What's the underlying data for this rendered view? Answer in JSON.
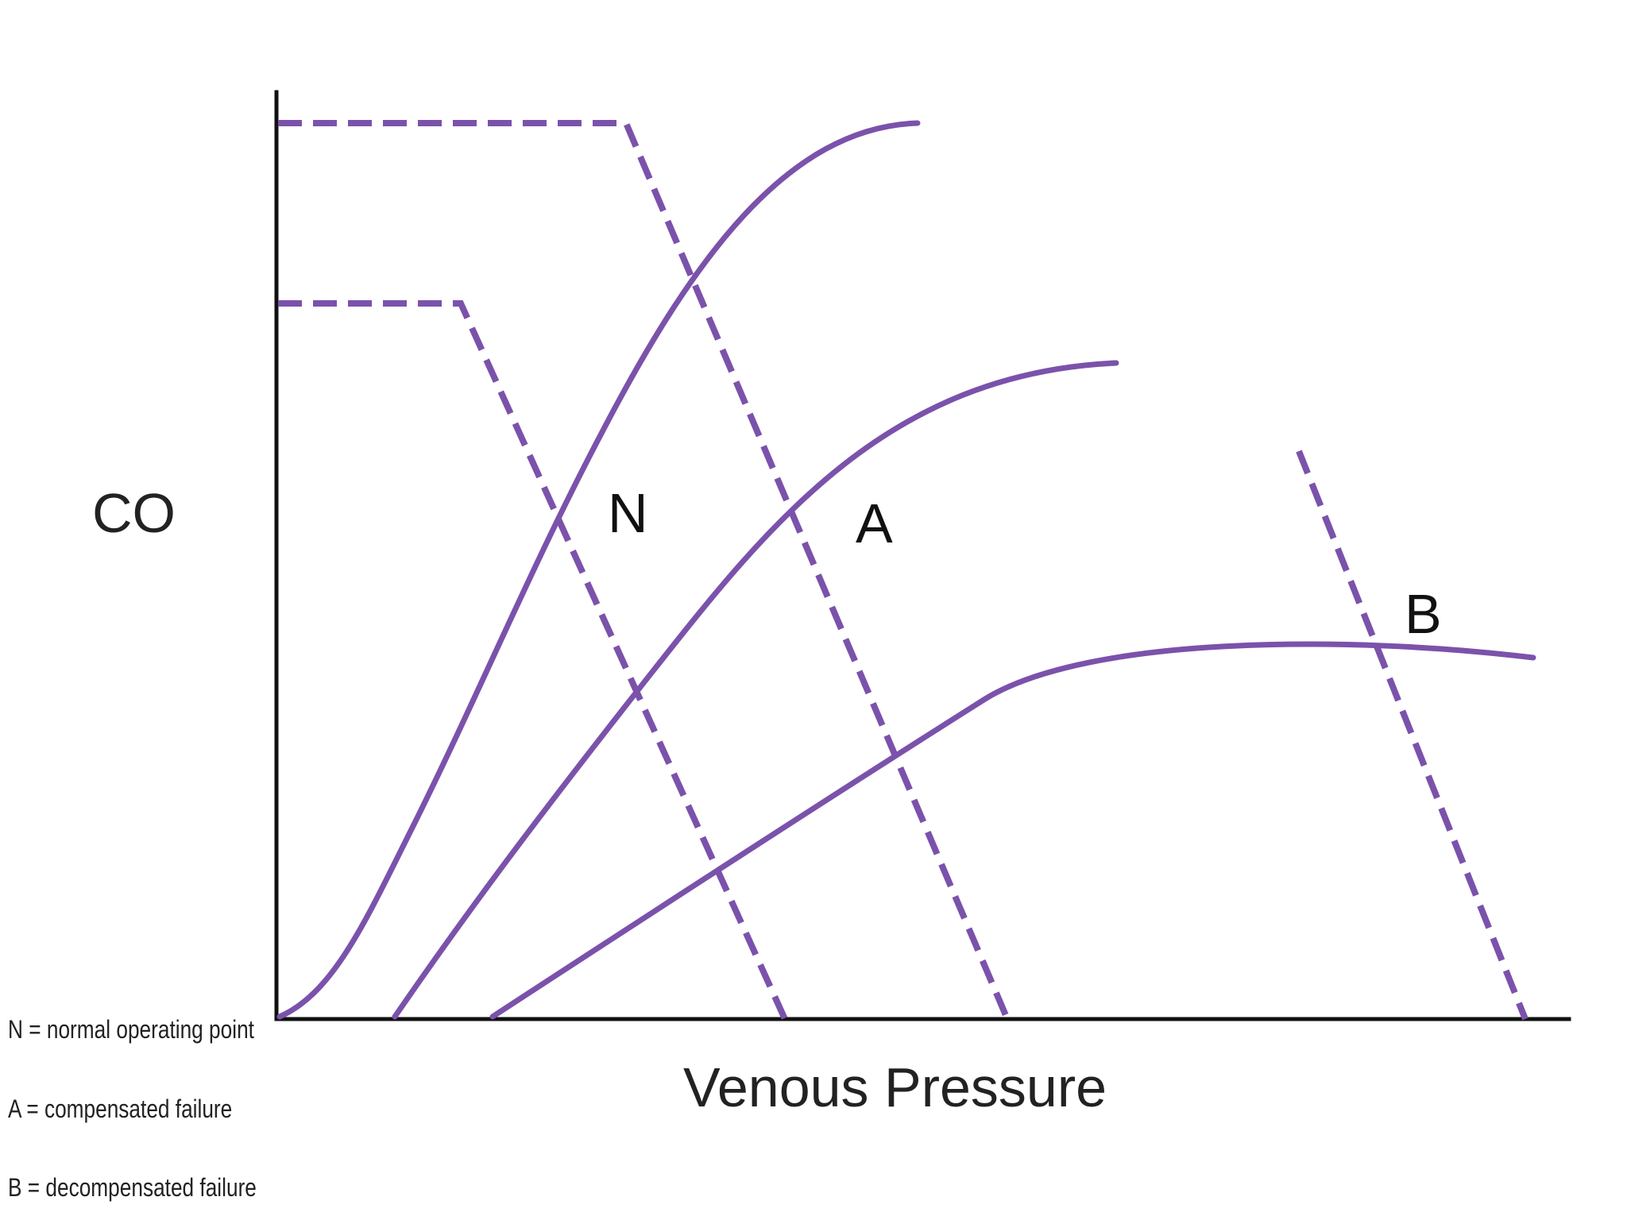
{
  "diagram": {
    "y_axis_label": "CO",
    "x_axis_label": "Venous Pressure",
    "colors": {
      "curve": "#7b52ab",
      "axis": "#111111",
      "text": "#222222"
    },
    "point_labels": {
      "normal": "N",
      "compensated": "A",
      "decompensated": "B"
    },
    "legend": [
      "N = normal operating point",
      "A = compensated failure",
      "B = decompensated failure"
    ]
  }
}
